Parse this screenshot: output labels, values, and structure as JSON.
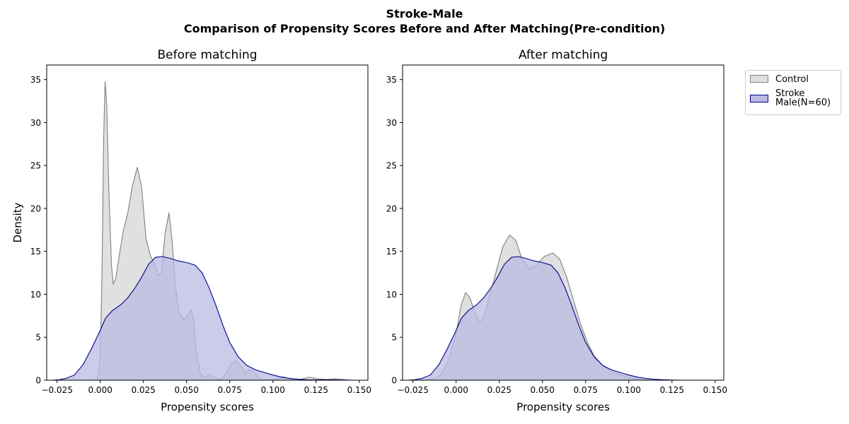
{
  "figure": {
    "title_line1": "Stroke-Male",
    "title_line2": "Comparison of Propensity Scores Before and After Matching(Pre-condition)"
  },
  "legend": {
    "items": [
      {
        "label": "Control",
        "fill": "#e0e0e0",
        "edge": "#808080"
      },
      {
        "label": "Stroke\nMale(N=60)",
        "fill": "#babae3",
        "edge": "#00008b"
      }
    ]
  },
  "chart_data": [
    {
      "type": "area",
      "title": "Before matching",
      "xlabel": "Propensity scores",
      "ylabel": "Density",
      "xlim": [
        -0.031,
        0.155
      ],
      "ylim": [
        0,
        36.7
      ],
      "xticks": [
        -0.025,
        0.0,
        0.025,
        0.05,
        0.075,
        0.1,
        0.125,
        0.15
      ],
      "xtick_labels": [
        "−0.025",
        "0.000",
        "0.025",
        "0.050",
        "0.075",
        "0.100",
        "0.125",
        "0.150"
      ],
      "yticks": [
        0,
        5,
        10,
        15,
        20,
        25,
        30,
        35
      ],
      "ytick_labels": [
        "0",
        "5",
        "10",
        "15",
        "20",
        "25",
        "30",
        "35"
      ],
      "grid": false,
      "series": [
        {
          "name": "Control",
          "fill": "#e0e0e0",
          "edge": "#808080",
          "points": [
            [
              -0.005,
              0
            ],
            [
              -0.002,
              0.05
            ],
            [
              -0.001,
              0.5
            ],
            [
              0,
              3.0
            ],
            [
              0.001,
              12.0
            ],
            [
              0.002,
              28.0
            ],
            [
              0.0028,
              34.8
            ],
            [
              0.0038,
              32.0
            ],
            [
              0.005,
              22.0
            ],
            [
              0.0065,
              13.5
            ],
            [
              0.0075,
              11.2
            ],
            [
              0.009,
              11.8
            ],
            [
              0.011,
              14.5
            ],
            [
              0.0135,
              17.5
            ],
            [
              0.016,
              19.5
            ],
            [
              0.0185,
              22.5
            ],
            [
              0.0215,
              24.8
            ],
            [
              0.024,
              22.5
            ],
            [
              0.0265,
              16.5
            ],
            [
              0.029,
              14.5
            ],
            [
              0.0315,
              13.5
            ],
            [
              0.0335,
              12.2
            ],
            [
              0.0355,
              12.5
            ],
            [
              0.0375,
              17.0
            ],
            [
              0.0398,
              19.5
            ],
            [
              0.0415,
              16.5
            ],
            [
              0.0435,
              11.0
            ],
            [
              0.0455,
              8.0
            ],
            [
              0.048,
              7.0
            ],
            [
              0.0505,
              7.5
            ],
            [
              0.0525,
              8.2
            ],
            [
              0.054,
              7.2
            ],
            [
              0.0555,
              3.5
            ],
            [
              0.058,
              0.8
            ],
            [
              0.0605,
              0.3
            ],
            [
              0.0625,
              0.6
            ],
            [
              0.066,
              0.3
            ],
            [
              0.0695,
              0.1
            ],
            [
              0.0725,
              0.6
            ],
            [
              0.0755,
              1.8
            ],
            [
              0.0785,
              2.3
            ],
            [
              0.0815,
              1.6
            ],
            [
              0.084,
              0.8
            ],
            [
              0.0865,
              1.2
            ],
            [
              0.089,
              1.0
            ],
            [
              0.0915,
              0.3
            ],
            [
              0.0945,
              0.05
            ],
            [
              0.0985,
              0.05
            ],
            [
              0.103,
              0.1
            ],
            [
              0.106,
              0.4
            ],
            [
              0.109,
              0.2
            ],
            [
              0.112,
              0.05
            ],
            [
              0.116,
              0.1
            ],
            [
              0.121,
              0.35
            ],
            [
              0.126,
              0.15
            ],
            [
              0.131,
              0.1
            ],
            [
              0.136,
              0.15
            ],
            [
              0.14,
              0.1
            ],
            [
              0.145,
              0
            ]
          ]
        },
        {
          "name": "Stroke\nMale(N=60)",
          "fill": "#babae3",
          "edge": "#00008b",
          "points": [
            [
              -0.028,
              0
            ],
            [
              -0.024,
              0.05
            ],
            [
              -0.02,
              0.2
            ],
            [
              -0.015,
              0.6
            ],
            [
              -0.01,
              1.8
            ],
            [
              -0.005,
              3.7
            ],
            [
              0,
              5.8
            ],
            [
              0.003,
              7.2
            ],
            [
              0.007,
              8.1
            ],
            [
              0.012,
              8.8
            ],
            [
              0.016,
              9.6
            ],
            [
              0.02,
              10.7
            ],
            [
              0.024,
              12.0
            ],
            [
              0.028,
              13.5
            ],
            [
              0.032,
              14.3
            ],
            [
              0.036,
              14.4
            ],
            [
              0.04,
              14.2
            ],
            [
              0.045,
              13.9
            ],
            [
              0.05,
              13.7
            ],
            [
              0.055,
              13.4
            ],
            [
              0.059,
              12.5
            ],
            [
              0.063,
              10.8
            ],
            [
              0.067,
              8.7
            ],
            [
              0.071,
              6.4
            ],
            [
              0.075,
              4.4
            ],
            [
              0.08,
              2.7
            ],
            [
              0.085,
              1.7
            ],
            [
              0.09,
              1.2
            ],
            [
              0.095,
              0.9
            ],
            [
              0.1,
              0.6
            ],
            [
              0.105,
              0.35
            ],
            [
              0.11,
              0.2
            ],
            [
              0.115,
              0.1
            ],
            [
              0.12,
              0.05
            ],
            [
              0.125,
              0.04
            ],
            [
              0.13,
              0.03
            ],
            [
              0.135,
              0.03
            ],
            [
              0.14,
              0.02
            ],
            [
              0.147,
              0
            ]
          ]
        }
      ]
    },
    {
      "type": "area",
      "title": "After matching",
      "xlabel": "Propensity scores",
      "ylabel": "",
      "xlim": [
        -0.031,
        0.155
      ],
      "ylim": [
        0,
        36.7
      ],
      "xticks": [
        -0.025,
        0.0,
        0.025,
        0.05,
        0.075,
        0.1,
        0.125,
        0.15
      ],
      "xtick_labels": [
        "−0.025",
        "0.000",
        "0.025",
        "0.050",
        "0.075",
        "0.100",
        "0.125",
        "0.150"
      ],
      "yticks": [
        0,
        5,
        10,
        15,
        20,
        25,
        30,
        35
      ],
      "ytick_labels": [
        "0",
        "5",
        "10",
        "15",
        "20",
        "25",
        "30",
        "35"
      ],
      "grid": false,
      "series": [
        {
          "name": "Control",
          "fill": "#e0e0e0",
          "edge": "#808080",
          "points": [
            [
              -0.018,
              0
            ],
            [
              -0.012,
              0.2
            ],
            [
              -0.008,
              0.8
            ],
            [
              -0.004,
              2.5
            ],
            [
              0,
              5.5
            ],
            [
              0.003,
              8.8
            ],
            [
              0.0055,
              10.2
            ],
            [
              0.008,
              9.6
            ],
            [
              0.011,
              7.8
            ],
            [
              0.0135,
              6.8
            ],
            [
              0.016,
              7.2
            ],
            [
              0.019,
              9.5
            ],
            [
              0.023,
              12.5
            ],
            [
              0.027,
              15.5
            ],
            [
              0.031,
              16.9
            ],
            [
              0.0345,
              16.3
            ],
            [
              0.038,
              14.2
            ],
            [
              0.0425,
              12.9
            ],
            [
              0.0465,
              13.4
            ],
            [
              0.051,
              14.4
            ],
            [
              0.056,
              14.8
            ],
            [
              0.06,
              14.1
            ],
            [
              0.064,
              12.0
            ],
            [
              0.068,
              9.3
            ],
            [
              0.072,
              6.6
            ],
            [
              0.076,
              4.4
            ],
            [
              0.08,
              2.8
            ],
            [
              0.085,
              1.7
            ],
            [
              0.09,
              1.0
            ],
            [
              0.095,
              0.6
            ],
            [
              0.1,
              0.3
            ],
            [
              0.106,
              0.1
            ],
            [
              0.112,
              0.02
            ],
            [
              0.118,
              0
            ]
          ]
        },
        {
          "name": "Stroke\nMale(N=60)",
          "fill": "#babae3",
          "edge": "#00008b",
          "points": [
            [
              -0.028,
              0
            ],
            [
              -0.024,
              0.05
            ],
            [
              -0.02,
              0.2
            ],
            [
              -0.015,
              0.6
            ],
            [
              -0.01,
              1.8
            ],
            [
              -0.005,
              3.7
            ],
            [
              0,
              5.8
            ],
            [
              0.003,
              7.2
            ],
            [
              0.007,
              8.1
            ],
            [
              0.012,
              8.8
            ],
            [
              0.016,
              9.6
            ],
            [
              0.02,
              10.7
            ],
            [
              0.024,
              12.0
            ],
            [
              0.028,
              13.5
            ],
            [
              0.032,
              14.3
            ],
            [
              0.036,
              14.4
            ],
            [
              0.04,
              14.2
            ],
            [
              0.045,
              13.9
            ],
            [
              0.05,
              13.7
            ],
            [
              0.055,
              13.4
            ],
            [
              0.059,
              12.5
            ],
            [
              0.063,
              10.8
            ],
            [
              0.067,
              8.7
            ],
            [
              0.071,
              6.4
            ],
            [
              0.075,
              4.4
            ],
            [
              0.08,
              2.7
            ],
            [
              0.085,
              1.7
            ],
            [
              0.09,
              1.2
            ],
            [
              0.095,
              0.9
            ],
            [
              0.1,
              0.6
            ],
            [
              0.105,
              0.35
            ],
            [
              0.11,
              0.2
            ],
            [
              0.115,
              0.1
            ],
            [
              0.12,
              0.05
            ],
            [
              0.125,
              0.02
            ],
            [
              0.131,
              0
            ]
          ]
        }
      ]
    }
  ]
}
